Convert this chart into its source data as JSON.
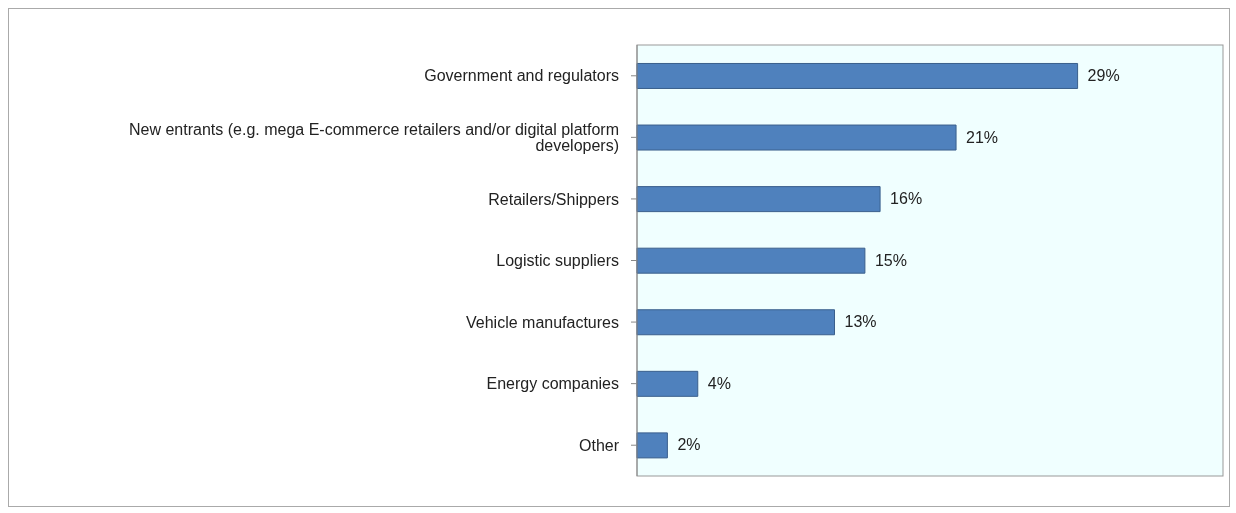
{
  "chart_data": {
    "type": "bar",
    "orientation": "horizontal",
    "categories": [
      "Government and regulators",
      "New entrants (e.g. mega E-commerce retailers and/or digital platform developers)",
      "Retailers/Shippers",
      "Logistic suppliers",
      "Vehicle manufactures",
      "Energy companies",
      "Other"
    ],
    "series": [
      {
        "color": "#4f81bd",
        "values": [
          29,
          21,
          16,
          15,
          13,
          4,
          2
        ],
        "value_labels": [
          "29%",
          "21%",
          "16%",
          "15%",
          "13%",
          "4%",
          "2%"
        ]
      }
    ],
    "legend": false
  }
}
